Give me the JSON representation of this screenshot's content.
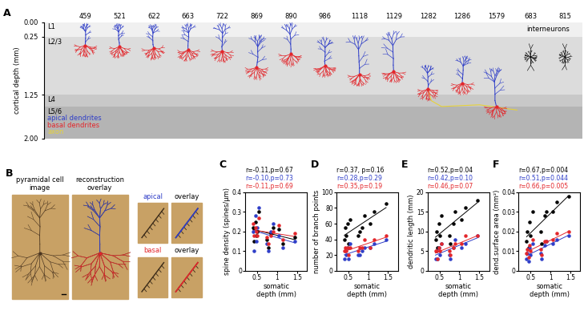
{
  "panel_A": {
    "label": "A",
    "ylabel": "cortical depth (mm)",
    "ylim": [
      0,
      2
    ],
    "yticks": [
      {
        "value": 0,
        "label": "0.00"
      },
      {
        "value": 0.25,
        "label": "0.25"
      },
      {
        "value": 1.25,
        "label": "1.25"
      },
      {
        "value": 2,
        "label": "2.00"
      }
    ],
    "tick_labels": "y",
    "layers": [
      {
        "name": "L1",
        "top": 0,
        "bottom": 0.25,
        "color": "#f0f0f0"
      },
      {
        "name": "L2/3",
        "top": 0.25,
        "bottom": 1.25,
        "color": "#dcdcdc"
      },
      {
        "name": "L4",
        "top": 1.25,
        "bottom": 1.45,
        "color": "#c8c8c8"
      },
      {
        "name": "L5/6",
        "top": 1.45,
        "bottom": 2.0,
        "color": "#b4b4b4"
      }
    ],
    "key": [
      {
        "text": "apical dendrites",
        "color": "#2f3ec8"
      },
      {
        "text": "basal dendrites",
        "color": "#e3262b"
      },
      {
        "text": "axon",
        "color": "#e6d23a"
      }
    ],
    "cells": [
      {
        "id": "459",
        "depth": 0.4
      },
      {
        "id": "521",
        "depth": 0.42
      },
      {
        "id": "622",
        "depth": 0.45
      },
      {
        "id": "663",
        "depth": 0.48
      },
      {
        "id": "722",
        "depth": 0.5
      },
      {
        "id": "869",
        "depth": 0.78
      },
      {
        "id": "890",
        "depth": 0.55
      },
      {
        "id": "986",
        "depth": 0.75
      },
      {
        "id": "1118",
        "depth": 0.9
      },
      {
        "id": "1129",
        "depth": 0.85
      },
      {
        "id": "1282",
        "depth": 1.15
      },
      {
        "id": "1286",
        "depth": 1.05
      },
      {
        "id": "1579",
        "depth": 1.45
      }
    ],
    "axon_cell": "1282",
    "interneurons": {
      "label": "interneurons",
      "color": "#000000",
      "cells": [
        {
          "id": "683",
          "depth": 0.6
        },
        {
          "id": "815",
          "depth": 0.6
        }
      ]
    }
  },
  "panel_B": {
    "label": "B",
    "image_titles": [
      "pyramidal cell\nimage",
      "reconstruction\noverlay"
    ],
    "insets": [
      {
        "text": "apical",
        "color": "#2f3ec8"
      },
      {
        "text": "overlay",
        "color": "#000000"
      },
      {
        "text": "basal",
        "color": "#e3262b"
      },
      {
        "text": "overlay",
        "color": "#000000"
      }
    ]
  },
  "chart_data": [
    {
      "type": "scatter",
      "label": "C",
      "xlabel": "somatic\ndepth (mm)",
      "ylabel": "spine density (spines/µm)",
      "x": [
        0.4,
        0.42,
        0.45,
        0.48,
        0.5,
        0.78,
        0.55,
        0.75,
        0.9,
        0.85,
        1.15,
        1.05,
        1.45
      ],
      "xlim": [
        0.2,
        1.75
      ],
      "xticks": [
        0.5,
        1,
        1.5
      ],
      "ylim": [
        0,
        0.4
      ],
      "yticks": [
        0,
        0.1,
        0.2,
        0.3,
        0.4
      ],
      "marker": "o",
      "series": [
        {
          "color": "#000000",
          "annotation": "r=-0.11,p=0.67",
          "values": [
            0.22,
            0.15,
            0.25,
            0.18,
            0.2,
            0.12,
            0.3,
            0.16,
            0.22,
            0.19,
            0.14,
            0.21,
            0.17
          ]
        },
        {
          "color": "#2f3ec8",
          "annotation": "r=-0.10,p=0.73",
          "values": [
            0.2,
            0.1,
            0.28,
            0.15,
            0.22,
            0.1,
            0.32,
            0.14,
            0.24,
            0.2,
            0.12,
            0.18,
            0.15
          ]
        },
        {
          "color": "#e3262b",
          "annotation": "r=-0.11,p=0.69",
          "values": [
            0.24,
            0.18,
            0.22,
            0.2,
            0.18,
            0.14,
            0.27,
            0.17,
            0.2,
            0.18,
            0.16,
            0.23,
            0.19
          ]
        }
      ]
    },
    {
      "type": "scatter",
      "label": "D",
      "xlabel": "somatic\ndepth (mm)",
      "ylabel": "number of branch points",
      "x": [
        0.4,
        0.42,
        0.45,
        0.48,
        0.5,
        0.78,
        0.55,
        0.75,
        0.9,
        0.85,
        1.15,
        1.05,
        1.45
      ],
      "xlim": [
        0.2,
        1.75
      ],
      "xticks": [
        0.5,
        1,
        1.5
      ],
      "ylim": [
        0,
        100
      ],
      "yticks": [
        0,
        20,
        40,
        60,
        80,
        100
      ],
      "marker": "o",
      "series": [
        {
          "color": "#000000",
          "annotation": "r=0.37, p=0.16",
          "values": [
            40,
            55,
            45,
            60,
            35,
            50,
            65,
            45,
            70,
            55,
            75,
            60,
            85
          ]
        },
        {
          "color": "#2f3ec8",
          "annotation": "r=0.28,p=0.29",
          "values": [
            15,
            25,
            20,
            30,
            15,
            20,
            35,
            20,
            30,
            25,
            35,
            30,
            40
          ]
        },
        {
          "color": "#e3262b",
          "annotation": "r=0.35,p=0.19",
          "values": [
            25,
            30,
            25,
            30,
            20,
            30,
            30,
            25,
            40,
            30,
            40,
            30,
            45
          ]
        }
      ]
    },
    {
      "type": "scatter",
      "label": "E",
      "xlabel": "somatic\ndepth (mm)",
      "ylabel": "dendritic length (mm)",
      "x": [
        0.4,
        0.42,
        0.45,
        0.48,
        0.5,
        0.78,
        0.55,
        0.75,
        0.9,
        0.85,
        1.15,
        1.05,
        1.45
      ],
      "xlim": [
        0.2,
        1.75
      ],
      "xticks": [
        0.5,
        1,
        1.5
      ],
      "ylim": [
        0,
        20
      ],
      "yticks": [
        0,
        5,
        10,
        15,
        20
      ],
      "marker": "o",
      "series": [
        {
          "color": "#000000",
          "annotation": "r=0.52,p=0.04",
          "values": [
            8,
            10,
            6,
            12,
            9,
            7,
            14,
            9,
            15,
            12,
            16,
            13,
            18
          ]
        },
        {
          "color": "#2f3ec8",
          "annotation": "r=0.42,p=0.10",
          "values": [
            3,
            5,
            3,
            6,
            4,
            3,
            7,
            4,
            8,
            6,
            7,
            6,
            9
          ]
        },
        {
          "color": "#e3262b",
          "annotation": "r=0.46,p=0.07",
          "values": [
            5,
            5,
            3,
            6,
            5,
            4,
            7,
            5,
            7,
            6,
            9,
            7,
            9
          ]
        }
      ]
    },
    {
      "type": "scatter",
      "label": "F",
      "xlabel": "somatic\ndepth (mm)",
      "ylabel": "dend.surface area (mm²)",
      "x": [
        0.4,
        0.42,
        0.45,
        0.48,
        0.5,
        0.78,
        0.55,
        0.75,
        0.9,
        0.85,
        1.15,
        1.05,
        1.45
      ],
      "xlim": [
        0.2,
        1.75
      ],
      "xticks": [
        0.5,
        1,
        1.5
      ],
      "ylim": [
        0,
        0.04
      ],
      "yticks": [
        0,
        0.01,
        0.02,
        0.03,
        0.04
      ],
      "marker": "o",
      "series": [
        {
          "color": "#000000",
          "annotation": "r=0.67,p=0.004",
          "values": [
            0.015,
            0.02,
            0.012,
            0.025,
            0.018,
            0.014,
            0.03,
            0.02,
            0.03,
            0.028,
            0.035,
            0.03,
            0.038
          ]
        },
        {
          "color": "#2f3ec8",
          "annotation": "r=0.51,p=0.044",
          "values": [
            0.006,
            0.009,
            0.005,
            0.012,
            0.008,
            0.006,
            0.014,
            0.009,
            0.015,
            0.013,
            0.016,
            0.014,
            0.018
          ]
        },
        {
          "color": "#e3262b",
          "annotation": "r=0.66,p=0.005",
          "values": [
            0.009,
            0.011,
            0.007,
            0.013,
            0.01,
            0.008,
            0.016,
            0.011,
            0.015,
            0.015,
            0.019,
            0.016,
            0.02
          ]
        }
      ]
    }
  ]
}
